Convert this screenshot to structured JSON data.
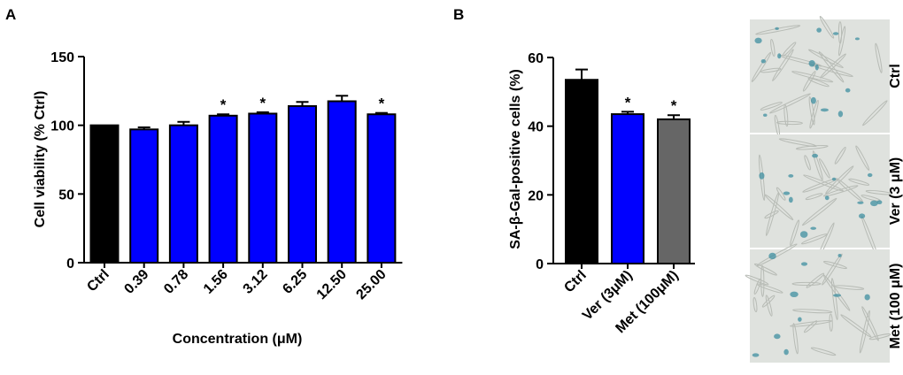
{
  "chart_data": [
    {
      "panel": "A",
      "type": "bar",
      "categories": [
        "Ctrl",
        "0.39",
        "0.78",
        "1.56",
        "3.12",
        "6.25",
        "12.50",
        "25.00"
      ],
      "values": [
        100,
        97,
        100,
        107,
        108.5,
        114,
        117.5,
        108
      ],
      "errors": [
        0,
        1.5,
        2.5,
        1,
        1,
        3,
        4,
        1
      ],
      "significance": [
        "",
        "",
        "",
        "*",
        "*",
        "",
        "",
        "*"
      ],
      "colors": [
        "#000000",
        "#0000ff",
        "#0000ff",
        "#0000ff",
        "#0000ff",
        "#0000ff",
        "#0000ff",
        "#0000ff"
      ],
      "xlabel": "Concentration (μM)",
      "ylabel": "Cell viability (% Ctrl)",
      "ylim": [
        0,
        150
      ],
      "yticks": [
        "0",
        "50",
        "100",
        "150"
      ]
    },
    {
      "panel": "B",
      "type": "bar",
      "categories": [
        "Ctrl",
        "Ver (3μM)",
        "Met (100μM)"
      ],
      "values": [
        53.5,
        43.5,
        42
      ],
      "errors": [
        3,
        0.7,
        1.2
      ],
      "significance": [
        "",
        "*",
        "*"
      ],
      "colors": [
        "#000000",
        "#0000ff",
        "#666666"
      ],
      "xlabel": "",
      "ylabel": "SA-β-Gal-positive cells (%)",
      "ylim": [
        0,
        60
      ],
      "yticks": [
        "0",
        "20",
        "40",
        "60"
      ]
    }
  ],
  "micrographs": {
    "labels": [
      "Ctrl",
      "Ver (3 μM)",
      "Met (100 μM)"
    ],
    "colors": {
      "background": "#dfe2de",
      "stain": "#3f8fa0",
      "cell": "#b8bcb6"
    }
  }
}
